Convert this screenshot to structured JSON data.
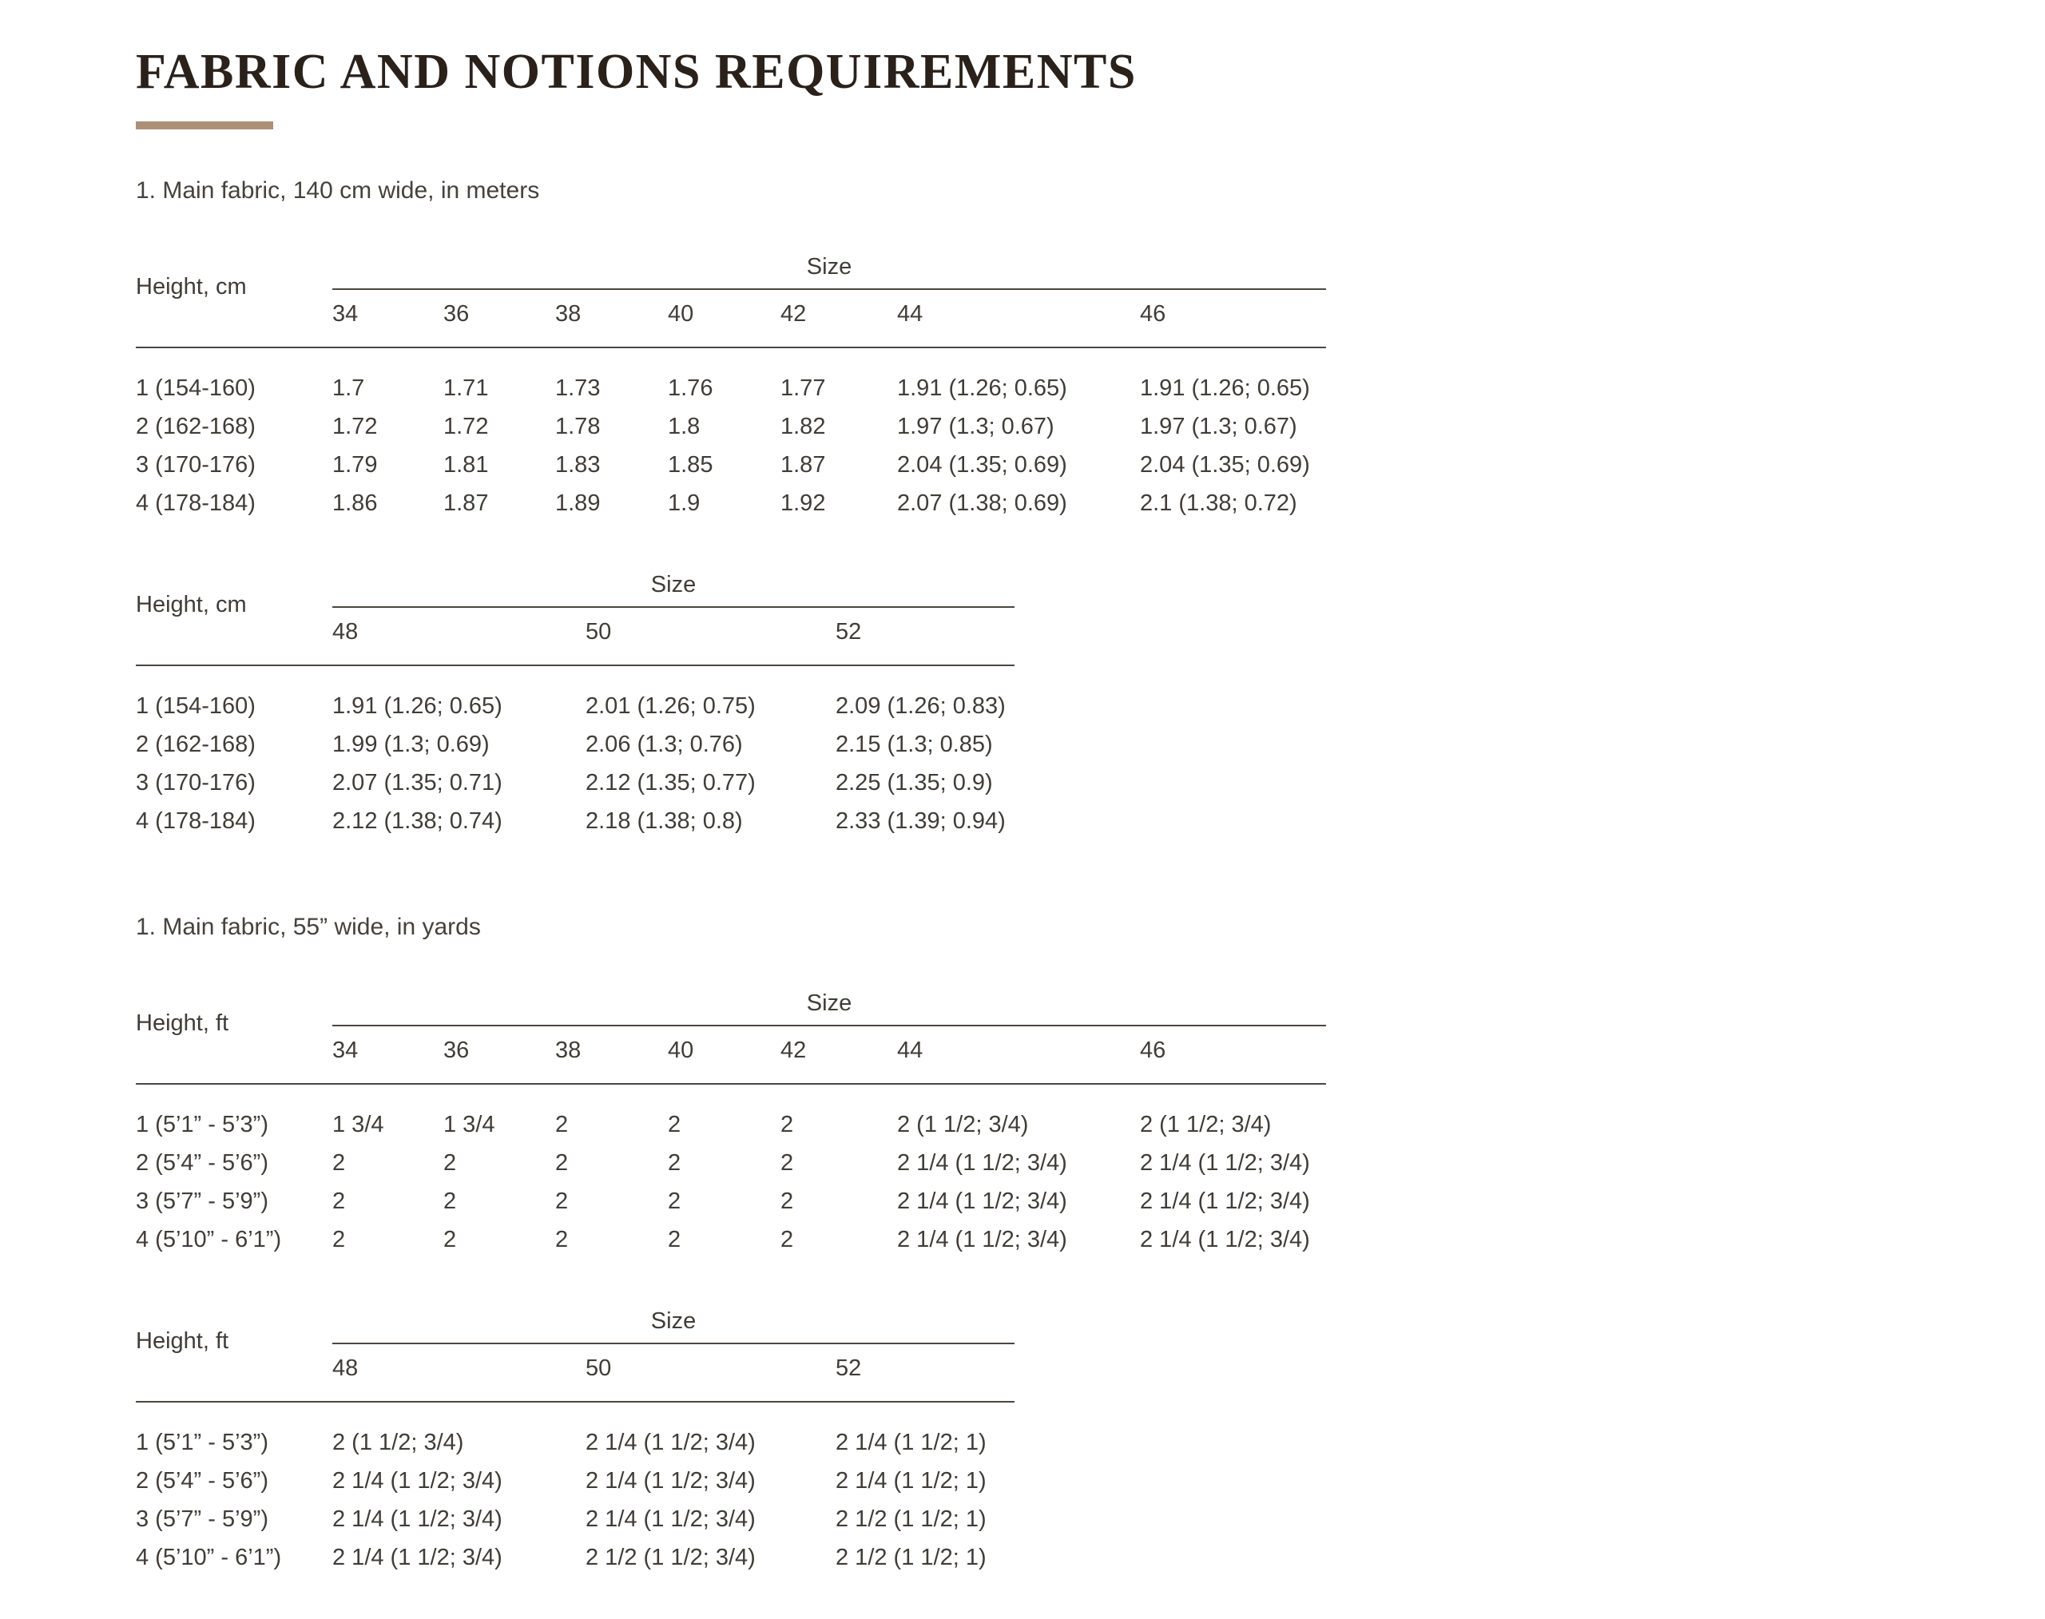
{
  "page": {
    "title": "FABRIC AND NOTIONS REQUIREMENTS",
    "accent_color": "#ab8f76",
    "text_color": "#403d38",
    "title_color": "#2a211b",
    "line_color": "#4a473f"
  },
  "sections": [
    {
      "heading": "1. Main fabric, 140 cm wide, in meters"
    },
    {
      "heading": "1. Main fabric, 55” wide, in yards"
    }
  ],
  "tables": [
    {
      "height_label": "Height, cm",
      "size_label": "Size",
      "columns": [
        "34",
        "36",
        "38",
        "40",
        "42",
        "44",
        "46"
      ],
      "rows": [
        {
          "label": "1 (154-160)",
          "values": [
            "1.7",
            "1.71",
            "1.73",
            "1.76",
            "1.77",
            "1.91 (1.26; 0.65)",
            "1.91 (1.26; 0.65)"
          ]
        },
        {
          "label": "2 (162-168)",
          "values": [
            "1.72",
            "1.72",
            "1.78",
            "1.8",
            "1.82",
            "1.97 (1.3; 0.67)",
            "1.97 (1.3; 0.67)"
          ]
        },
        {
          "label": "3 (170-176)",
          "values": [
            "1.79",
            "1.81",
            "1.83",
            "1.85",
            "1.87",
            "2.04 (1.35; 0.69)",
            "2.04 (1.35; 0.69)"
          ]
        },
        {
          "label": "4 (178-184)",
          "values": [
            "1.86",
            "1.87",
            "1.89",
            "1.9",
            "1.92",
            "2.07 (1.38; 0.69)",
            "2.1 (1.38; 0.72)"
          ]
        }
      ]
    },
    {
      "height_label": "Height, cm",
      "size_label": "Size",
      "columns": [
        "48",
        "50",
        "52"
      ],
      "rows": [
        {
          "label": "1 (154-160)",
          "values": [
            "1.91 (1.26; 0.65)",
            "2.01 (1.26; 0.75)",
            "2.09 (1.26; 0.83)"
          ]
        },
        {
          "label": "2 (162-168)",
          "values": [
            "1.99 (1.3; 0.69)",
            "2.06 (1.3; 0.76)",
            "2.15 (1.3; 0.85)"
          ]
        },
        {
          "label": "3 (170-176)",
          "values": [
            "2.07 (1.35; 0.71)",
            "2.12 (1.35; 0.77)",
            "2.25 (1.35; 0.9)"
          ]
        },
        {
          "label": "4 (178-184)",
          "values": [
            "2.12 (1.38; 0.74)",
            "2.18 (1.38; 0.8)",
            "2.33 (1.39; 0.94)"
          ]
        }
      ]
    },
    {
      "height_label": "Height, ft",
      "size_label": "Size",
      "columns": [
        "34",
        "36",
        "38",
        "40",
        "42",
        "44",
        "46"
      ],
      "rows": [
        {
          "label": "1 (5’1” - 5’3”)",
          "values": [
            "1 3/4",
            "1 3/4",
            "2",
            "2",
            "2",
            "2 (1 1/2; 3/4)",
            "2 (1 1/2; 3/4)"
          ]
        },
        {
          "label": "2 (5’4” - 5’6”)",
          "values": [
            "2",
            "2",
            "2",
            "2",
            "2",
            "2 1/4 (1 1/2; 3/4)",
            "2 1/4 (1 1/2; 3/4)"
          ]
        },
        {
          "label": "3 (5’7” - 5’9”)",
          "values": [
            "2",
            "2",
            "2",
            "2",
            "2",
            "2 1/4 (1 1/2; 3/4)",
            "2 1/4 (1 1/2; 3/4)"
          ]
        },
        {
          "label": "4 (5’10” - 6’1”)",
          "values": [
            "2",
            "2",
            "2",
            "2",
            "2",
            "2 1/4 (1 1/2; 3/4)",
            "2 1/4 (1 1/2; 3/4)"
          ]
        }
      ]
    },
    {
      "height_label": "Height, ft",
      "size_label": "Size",
      "columns": [
        "48",
        "50",
        "52"
      ],
      "rows": [
        {
          "label": "1 (5’1” - 5’3”)",
          "values": [
            "2 (1 1/2; 3/4)",
            "2 1/4 (1 1/2; 3/4)",
            "2 1/4 (1 1/2; 1)"
          ]
        },
        {
          "label": "2 (5’4” - 5’6”)",
          "values": [
            "2 1/4 (1 1/2; 3/4)",
            "2 1/4 (1 1/2; 3/4)",
            "2 1/4 (1 1/2; 1)"
          ]
        },
        {
          "label": "3 (5’7” - 5’9”)",
          "values": [
            "2 1/4 (1 1/2; 3/4)",
            "2 1/4 (1 1/2; 3/4)",
            "2 1/2 (1 1/2; 1)"
          ]
        },
        {
          "label": "4 (5’10” - 6’1”)",
          "values": [
            "2 1/4 (1 1/2; 3/4)",
            "2 1/2 (1 1/2; 3/4)",
            "2 1/2 (1 1/2; 1)"
          ]
        }
      ]
    }
  ]
}
